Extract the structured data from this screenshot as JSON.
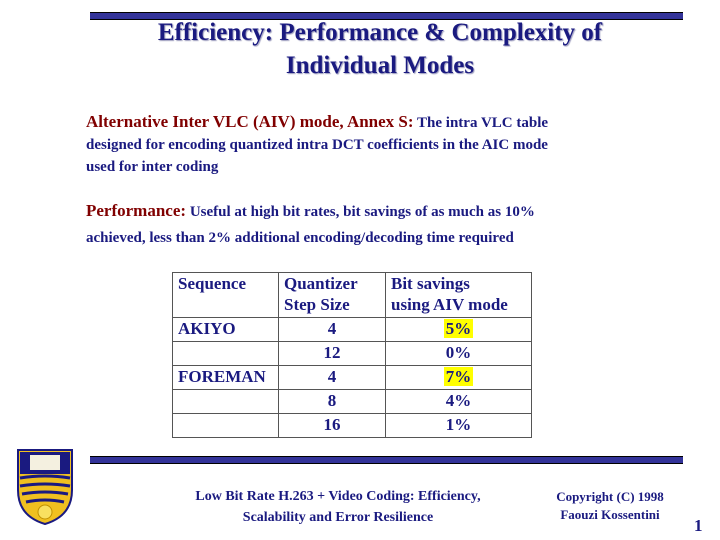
{
  "title": {
    "lines": [
      "Efficiency: Performance & Complexity of",
      "Individual Modes"
    ]
  },
  "paragraphs": [
    {
      "lead": "Alternative Inter VLC (AIV) mode, Annex S:",
      "lines": [
        "The intra VLC table",
        "designed for encoding quantized intra DCT coefficients in the AIC mode",
        "used for inter coding"
      ]
    },
    {
      "lead": "Performance:",
      "lines": [
        "Useful at high bit rates, bit savings of as much as 10%",
        "achieved, less than 2% additional encoding/decoding time required"
      ]
    }
  ],
  "table": {
    "header": [
      [
        "Sequence"
      ],
      [
        "Quantizer",
        "Step Size"
      ],
      [
        "Bit savings",
        "using AIV mode"
      ]
    ],
    "rows": [
      [
        "AKIYO",
        "4",
        "5%"
      ],
      [
        null,
        "12",
        "0%"
      ],
      [
        "FOREMAN",
        "4",
        "7%"
      ],
      [
        null,
        "8",
        "4%"
      ],
      [
        null,
        "16",
        "1%"
      ]
    ]
  },
  "footer": {
    "center": [
      "Low Bit Rate H.263 + Video Coding: Efficiency,",
      "Scalability and Error Resilience"
    ],
    "copyright": [
      "Copyright (C) 1998",
      "Faouzi Kossentini"
    ],
    "page": "1"
  }
}
